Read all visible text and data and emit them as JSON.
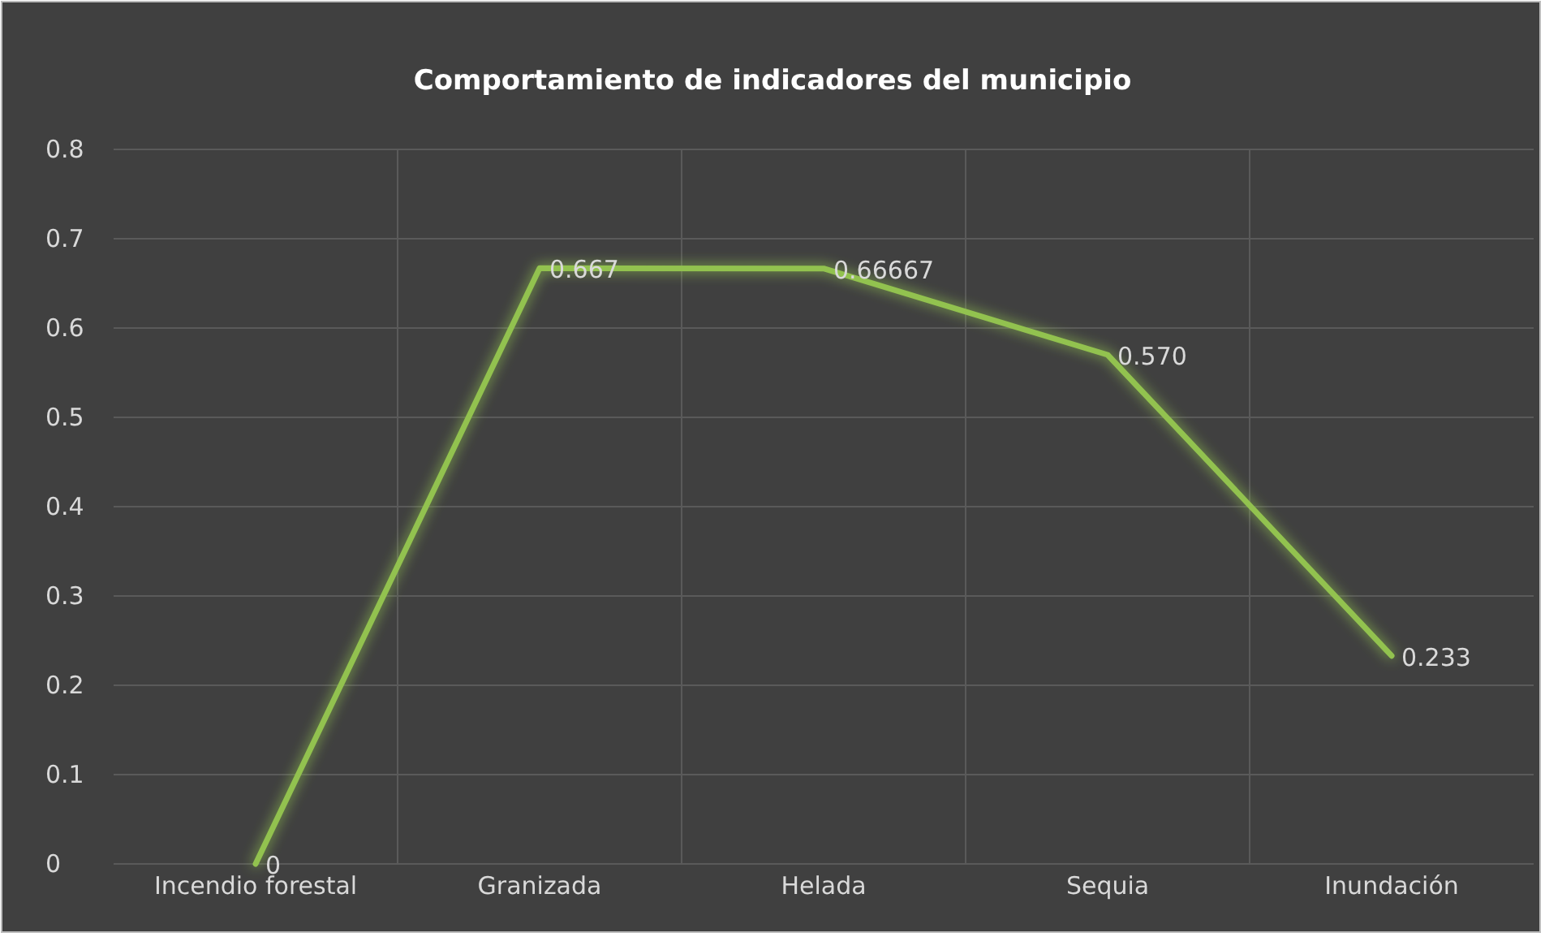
{
  "chart_data": {
    "type": "line",
    "title": "Comportamiento de indicadores del municipio",
    "categories": [
      "Incendio forestal",
      "Granizada",
      "Helada",
      "Sequia",
      "Inundación"
    ],
    "series": [
      {
        "color": "#92c24f",
        "values": [
          0,
          0.667,
          0.66667,
          0.57,
          0.233
        ],
        "value_labels": [
          "0",
          "0.667",
          "0.66667",
          "0.570",
          "0.233"
        ]
      }
    ],
    "ylim": [
      0,
      0.8
    ],
    "yticks": [
      0,
      0.1,
      0.2,
      0.3,
      0.4,
      0.5,
      0.6,
      0.7,
      0.8
    ],
    "grid": true,
    "marker": "none",
    "line_style": "solid"
  }
}
